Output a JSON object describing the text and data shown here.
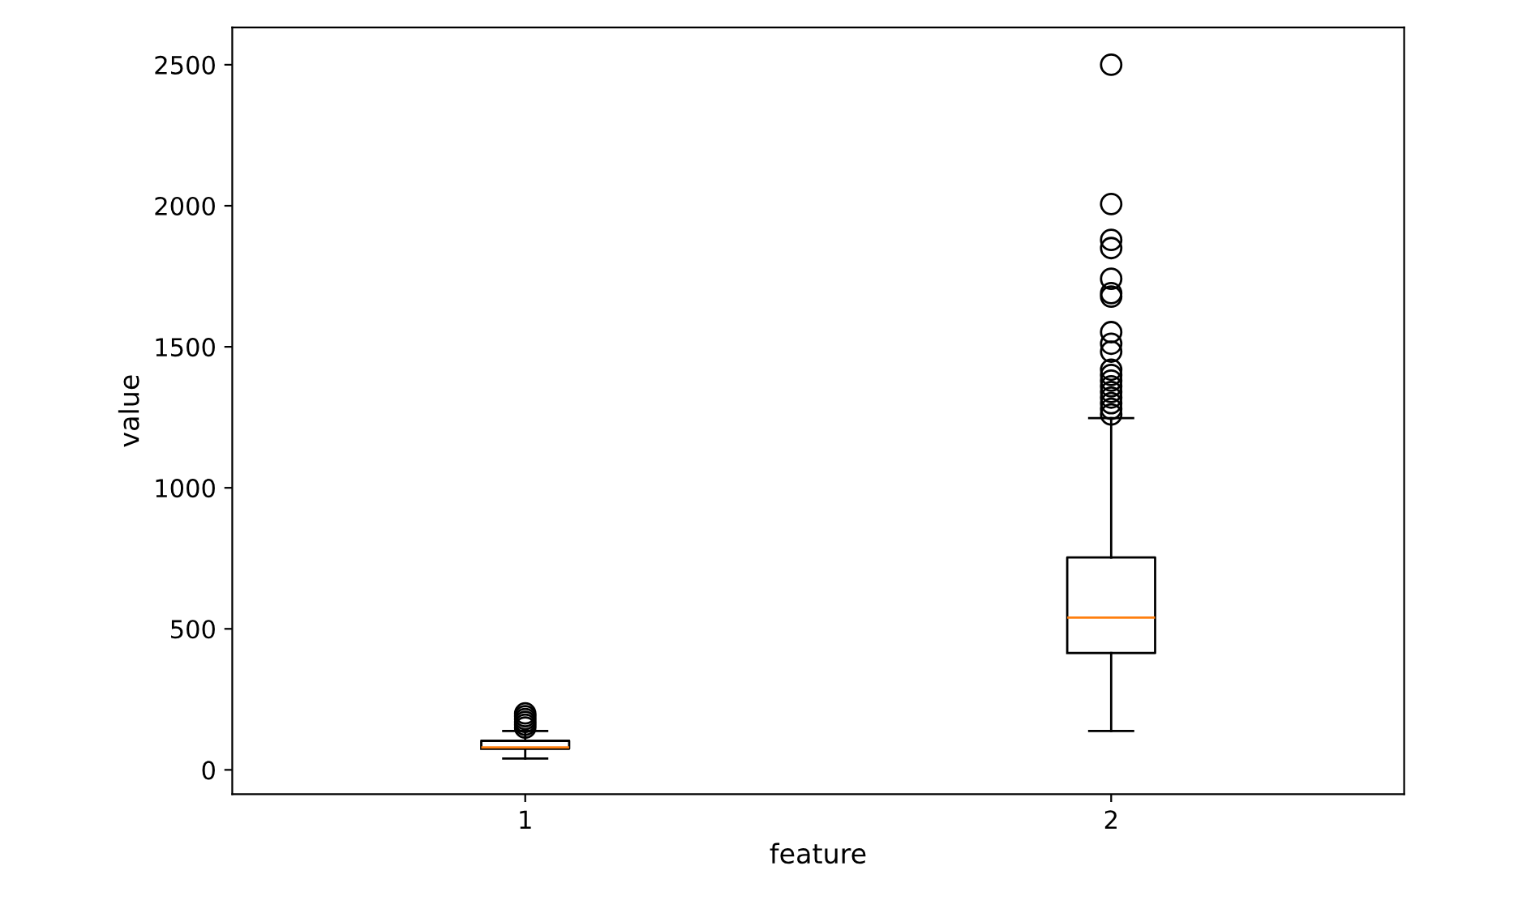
{
  "chart_data": {
    "type": "box",
    "xlabel": "feature",
    "ylabel": "value",
    "categories": [
      "1",
      "2"
    ],
    "boxes": [
      {
        "low": 40,
        "q1": 75,
        "median": 80,
        "q3": 103,
        "high": 138,
        "outliers": [
          150,
          160,
          170,
          180,
          190,
          200
        ]
      },
      {
        "low": 138,
        "q1": 414,
        "median": 540,
        "q3": 753,
        "high": 1247,
        "outliers": [
          1260,
          1280,
          1300,
          1320,
          1340,
          1360,
          1380,
          1400,
          1419,
          1483,
          1511,
          1552,
          1678,
          1690,
          1741,
          1850,
          1879,
          2006,
          2500
        ]
      }
    ],
    "color": "#000000",
    "ylim": [
      -86,
      2632
    ],
    "yticks": [
      0,
      500,
      1000,
      1500,
      2000,
      2500
    ],
    "grid": false
  }
}
